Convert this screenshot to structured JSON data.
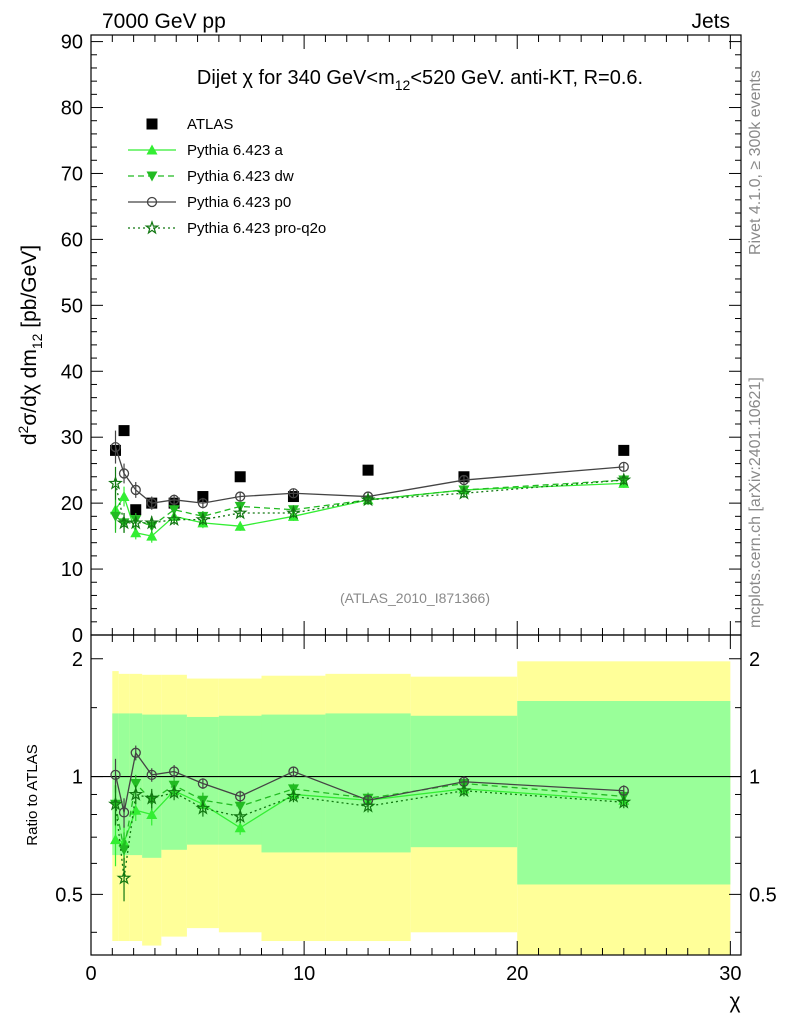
{
  "header": {
    "left": "7000 GeV pp",
    "right": "Jets",
    "side_top": "Rivet 4.1.0, ≥ 300k events",
    "side_bottom": "mcplots.cern.ch [arXiv:2401.10621]"
  },
  "chart_data": {
    "type": "scatter",
    "title_parts": {
      "prefix": "Dijet ",
      "chi": "χ",
      "mid": " for 340 GeV<m",
      "sub": "12",
      "suffix": "<520 GeV.  anti-KT, R=0.6."
    },
    "watermark": "(ATLAS_2010_I871366)",
    "ylabel": "d²σ/dχ dm₁₂ [pb/GeV]",
    "ylabel_parts": {
      "d1": "d",
      "sup": "2",
      "mid": "σ/dχ dm",
      "sub": "12",
      "unit": " [pb/GeV]"
    },
    "xlabel": "χ",
    "ratio_ylabel": "Ratio to ATLAS",
    "xlim": [
      0,
      30.5
    ],
    "ylim": [
      0,
      91
    ],
    "ratio_ylim": [
      0.35,
      2.3
    ],
    "x_ticks": [
      "0",
      "10",
      "20",
      "30"
    ],
    "y_ticks": [
      "0",
      "10",
      "20",
      "30",
      "40",
      "50",
      "60",
      "70",
      "80",
      "90"
    ],
    "ratio_ticks": [
      "0.5",
      "1",
      "2"
    ],
    "bin_edges": [
      1.0,
      1.3,
      1.8,
      2.4,
      3.3,
      4.5,
      6.0,
      8.0,
      11.0,
      15.0,
      20.0,
      30.0
    ],
    "x": [
      1.15,
      1.55,
      2.1,
      2.85,
      3.9,
      5.25,
      7.0,
      9.5,
      13.0,
      17.5,
      25.0
    ],
    "band_inner": [
      [
        0.63,
        1.45
      ],
      [
        0.63,
        1.45
      ],
      [
        0.63,
        1.45
      ],
      [
        0.62,
        1.44
      ],
      [
        0.65,
        1.44
      ],
      [
        0.67,
        1.42
      ],
      [
        0.67,
        1.43
      ],
      [
        0.64,
        1.44
      ],
      [
        0.64,
        1.45
      ],
      [
        0.66,
        1.43
      ],
      [
        0.53,
        1.56
      ]
    ],
    "band_outer": [
      [
        0.38,
        1.86
      ],
      [
        0.38,
        1.83
      ],
      [
        0.38,
        1.83
      ],
      [
        0.37,
        1.82
      ],
      [
        0.39,
        1.82
      ],
      [
        0.41,
        1.78
      ],
      [
        0.4,
        1.78
      ],
      [
        0.38,
        1.81
      ],
      [
        0.38,
        1.83
      ],
      [
        0.4,
        1.8
      ],
      [
        0.35,
        1.97
      ]
    ],
    "series": [
      {
        "name": "ATLAS",
        "color": "#000000",
        "marker": "square",
        "line": "none",
        "values": [
          28.0,
          31.0,
          19.0,
          20.0,
          20.0,
          21.0,
          24.0,
          21.0,
          25.0,
          24.0,
          28.0
        ],
        "ratio": [
          1,
          1,
          1,
          1,
          1,
          1,
          1,
          1,
          1,
          1,
          1
        ]
      },
      {
        "name": "Pythia 6.423 a",
        "color": "#33ee33",
        "marker": "triangle-up",
        "line": "solid",
        "values": [
          19.0,
          21.0,
          15.5,
          15.0,
          18.0,
          17.0,
          16.5,
          18.0,
          20.5,
          22.0,
          23.0
        ],
        "errors": [
          3.0,
          1.5,
          1.0,
          1.0,
          0.8,
          0.8,
          0.7,
          0.7,
          0.7,
          0.7,
          0.7
        ],
        "ratio": [
          0.69,
          0.68,
          0.82,
          0.8,
          0.92,
          0.85,
          0.74,
          0.9,
          0.87,
          0.93,
          0.87
        ],
        "ratio_err": [
          0.1,
          0.07,
          0.05,
          0.05,
          0.04,
          0.04,
          0.03,
          0.03,
          0.03,
          0.03,
          0.03
        ]
      },
      {
        "name": "Pythia 6.423 dw",
        "color": "#22bb22",
        "marker": "triangle-down",
        "line": "dashed",
        "values": [
          18.0,
          17.0,
          17.5,
          16.5,
          19.0,
          18.0,
          19.5,
          19.0,
          20.5,
          22.0,
          23.5
        ],
        "errors": [
          2.5,
          1.5,
          1.0,
          1.0,
          0.8,
          0.8,
          0.7,
          0.7,
          0.7,
          0.7,
          0.7
        ],
        "ratio": [
          0.85,
          0.65,
          0.96,
          0.87,
          0.95,
          0.87,
          0.84,
          0.93,
          0.88,
          0.96,
          0.89
        ],
        "ratio_err": [
          0.1,
          0.07,
          0.05,
          0.05,
          0.04,
          0.04,
          0.03,
          0.03,
          0.03,
          0.03,
          0.03
        ]
      },
      {
        "name": "Pythia 6.423 p0",
        "color": "#444444",
        "marker": "circle-open",
        "line": "solid",
        "values": [
          28.5,
          24.5,
          22.0,
          20.0,
          20.5,
          20.0,
          21.0,
          21.5,
          21.0,
          23.5,
          25.5
        ],
        "errors": [
          2.5,
          1.5,
          1.2,
          1.0,
          0.8,
          0.8,
          0.7,
          0.7,
          0.7,
          0.7,
          0.7
        ],
        "ratio": [
          1.01,
          0.81,
          1.15,
          1.01,
          1.03,
          0.96,
          0.89,
          1.03,
          0.87,
          0.97,
          0.92
        ],
        "ratio_err": [
          0.1,
          0.07,
          0.05,
          0.04,
          0.04,
          0.03,
          0.03,
          0.03,
          0.03,
          0.03,
          0.03
        ]
      },
      {
        "name": "Pythia 6.423 pro-q2o",
        "color": "#117711",
        "marker": "star-open",
        "line": "dotted",
        "values": [
          23.0,
          17.0,
          17.0,
          17.0,
          17.5,
          17.5,
          18.5,
          18.5,
          20.5,
          21.5,
          23.5
        ],
        "errors": [
          2.5,
          1.5,
          1.0,
          1.0,
          0.8,
          0.8,
          0.7,
          0.7,
          0.7,
          0.7,
          0.7
        ],
        "ratio": [
          0.85,
          0.55,
          0.9,
          0.88,
          0.91,
          0.83,
          0.79,
          0.89,
          0.84,
          0.92,
          0.86
        ],
        "ratio_err": [
          0.1,
          0.07,
          0.05,
          0.05,
          0.04,
          0.04,
          0.03,
          0.03,
          0.03,
          0.03,
          0.03
        ]
      }
    ],
    "colors": {
      "band_inner": "#99ff99",
      "band_outer": "#ffff99"
    }
  }
}
